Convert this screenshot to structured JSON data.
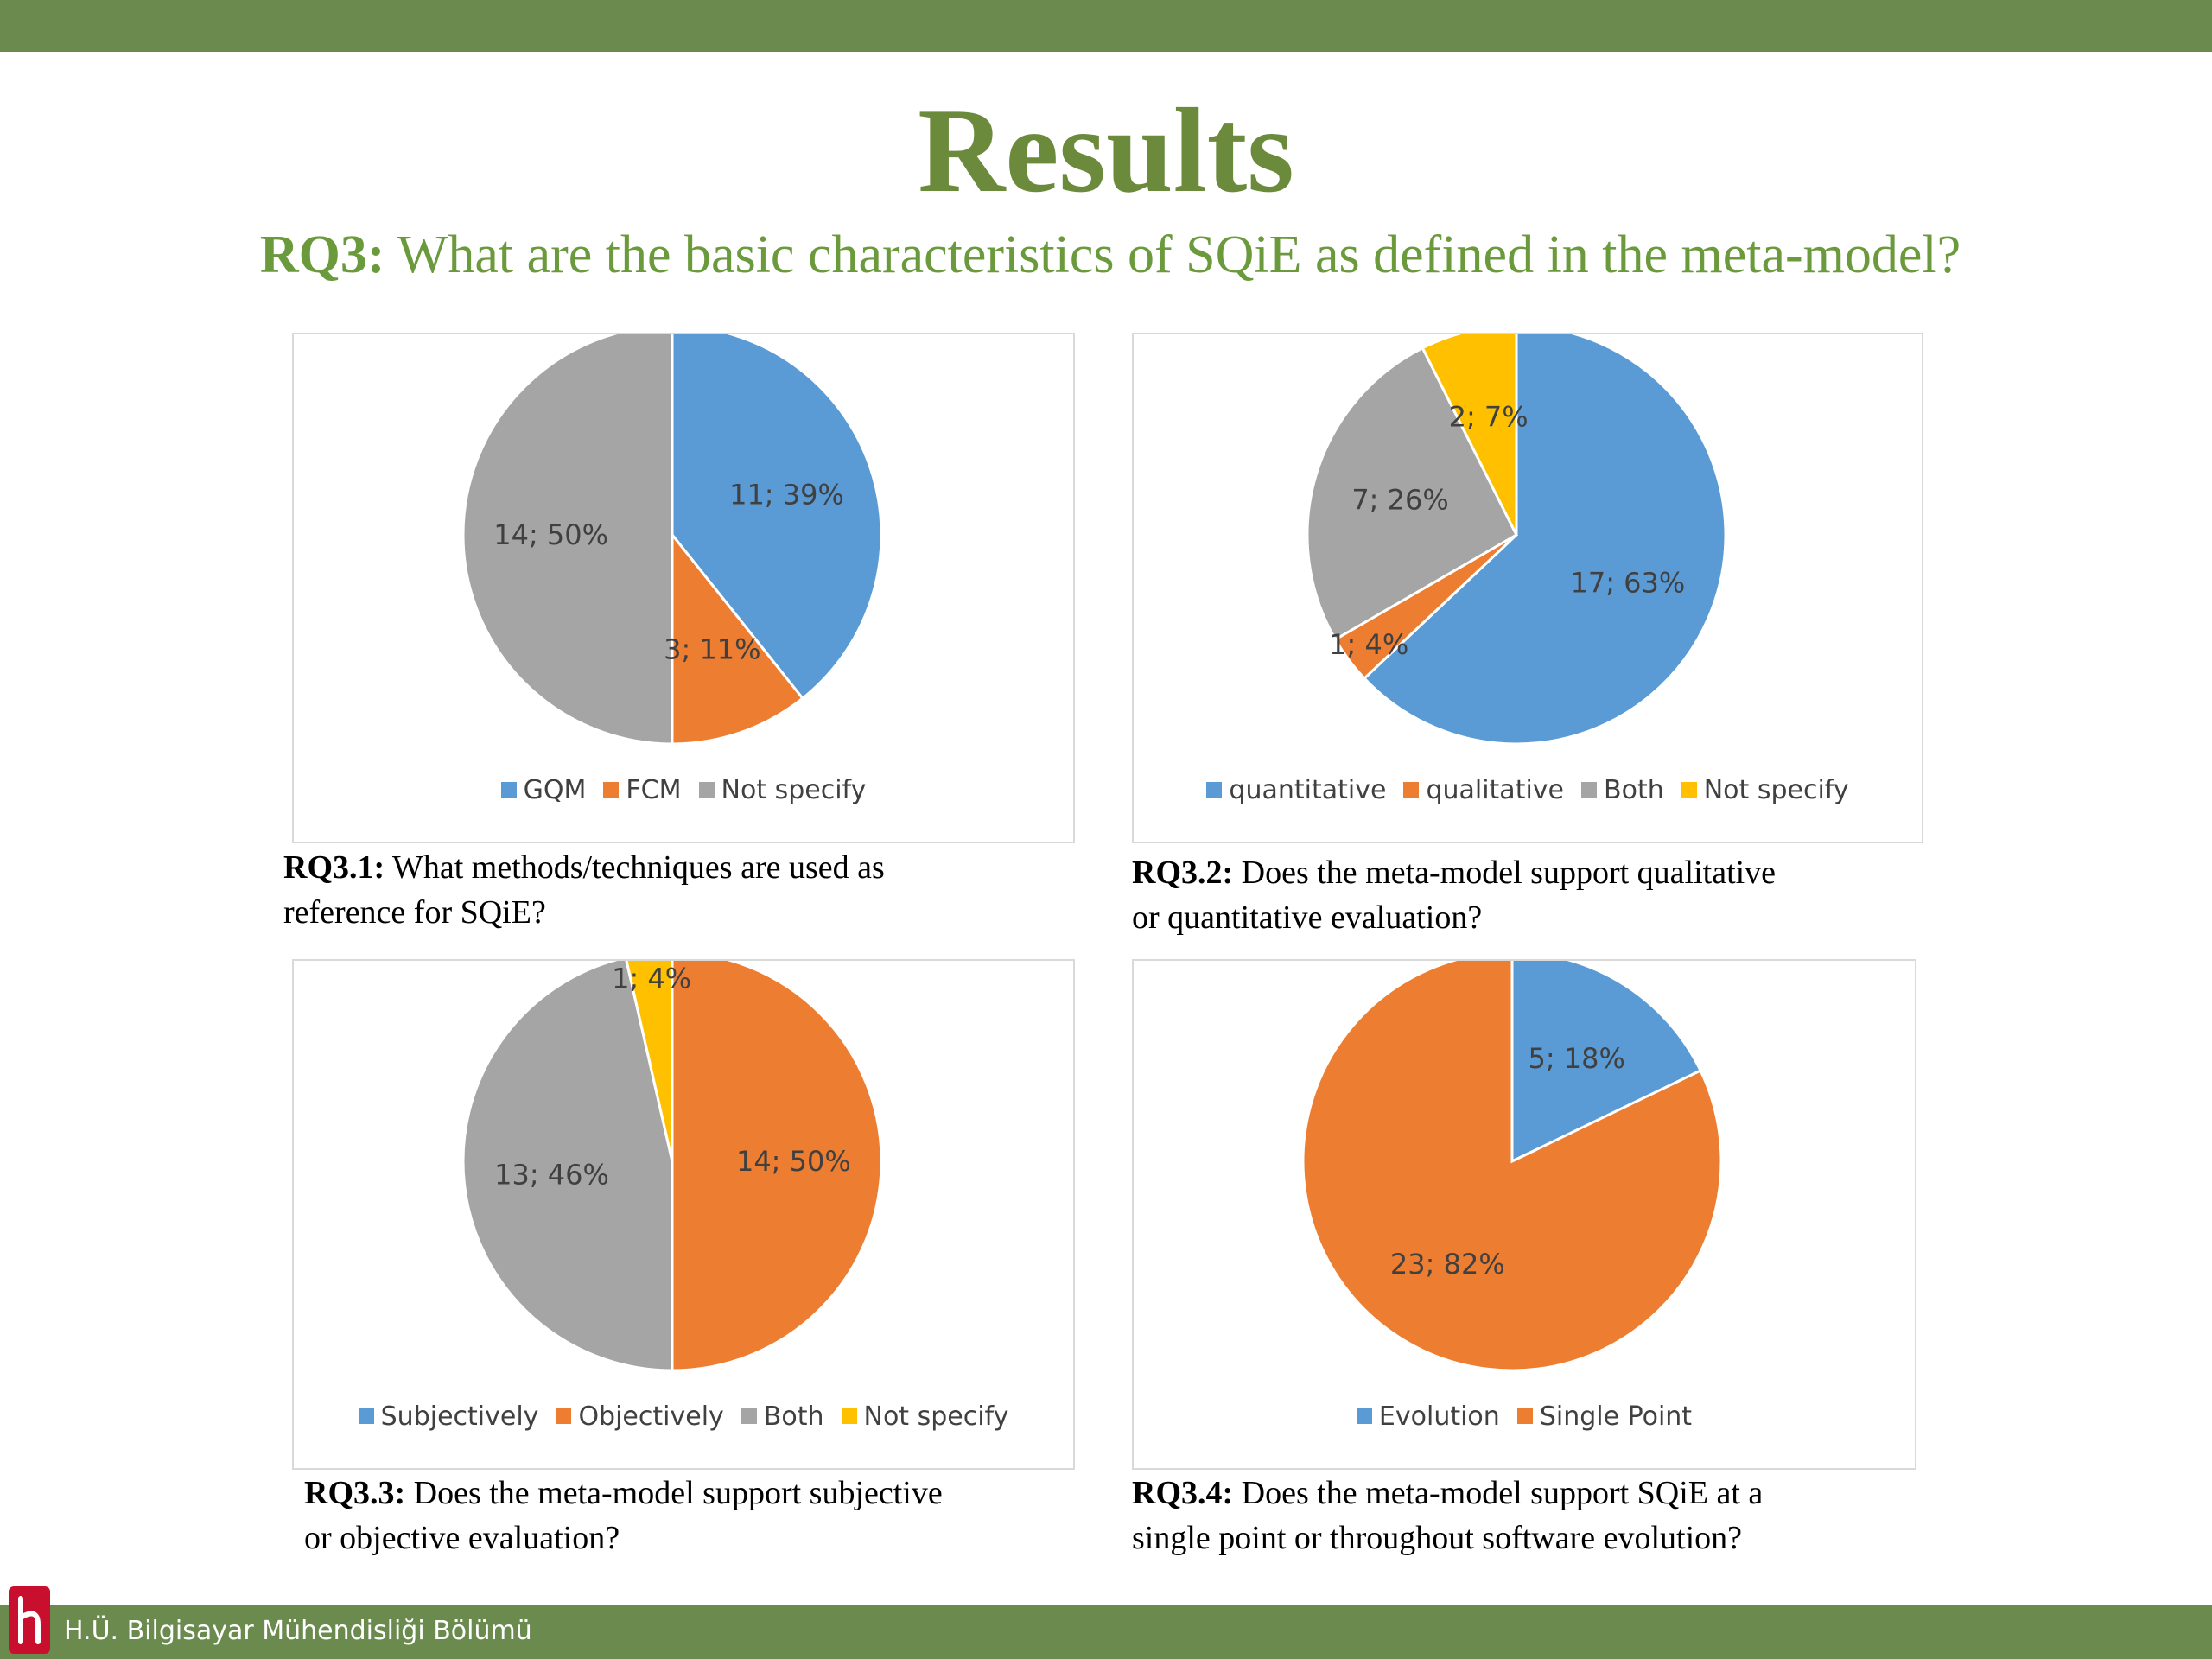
{
  "title": "Results",
  "subtitle": {
    "bold": "RQ3:",
    "text": " What are the basic characteristics of SQiE as defined in the meta-model?"
  },
  "footer": {
    "text": "H.Ü. Bilgisayar Mühendisliği Bölümü"
  },
  "colors": {
    "bar": "#6b8a4e",
    "title": "#6b8a3c",
    "blue": "#5b9bd5",
    "orange": "#ed7d31",
    "gray": "#a5a5a5",
    "yellow": "#ffc000"
  },
  "chart_data": [
    {
      "type": "pie",
      "categories": [
        "GQM",
        "FCM",
        "Not specify"
      ],
      "values": [
        11,
        3,
        14
      ],
      "labels": [
        "11; 39%",
        "3; 11%",
        "14; 50%"
      ],
      "colors": [
        "#5b9bd5",
        "#ed7d31",
        "#a5a5a5"
      ],
      "legend": "bottom",
      "caption_bold": "RQ3.1:",
      "caption_line1": " What methods/techniques are used as",
      "caption_line2": "reference for SQiE?"
    },
    {
      "type": "pie",
      "categories": [
        "quantitative",
        "qualitative",
        "Both",
        "Not specify"
      ],
      "values": [
        17,
        1,
        7,
        2
      ],
      "labels": [
        "17; 63%",
        "1; 4%",
        "7; 26%",
        "2; 7%"
      ],
      "colors": [
        "#5b9bd5",
        "#ed7d31",
        "#a5a5a5",
        "#ffc000"
      ],
      "legend": "bottom",
      "caption_bold": "RQ3.2:",
      "caption_line1": " Does the meta-model support qualitative",
      "caption_line2": "or quantitative evaluation?"
    },
    {
      "type": "pie",
      "categories": [
        "Subjectively",
        "Objectively",
        "Both",
        "Not specify"
      ],
      "values": [
        0,
        14,
        13,
        1
      ],
      "labels": [
        "",
        "14; 50%",
        "13; 46%",
        "1; 4%"
      ],
      "colors": [
        "#5b9bd5",
        "#ed7d31",
        "#a5a5a5",
        "#ffc000"
      ],
      "legend": "bottom",
      "caption_bold": "RQ3.3:",
      "caption_line1": " Does the meta-model support subjective",
      "caption_line2": "or objective evaluation?"
    },
    {
      "type": "pie",
      "categories": [
        "Evolution",
        "Single Point"
      ],
      "values": [
        5,
        23
      ],
      "labels": [
        "5; 18%",
        "23; 82%"
      ],
      "colors": [
        "#5b9bd5",
        "#ed7d31"
      ],
      "legend": "bottom",
      "caption_bold": "RQ3.4:",
      "caption_line1": " Does the meta-model support SQiE at a",
      "caption_line2": "single point or throughout software evolution?"
    }
  ]
}
